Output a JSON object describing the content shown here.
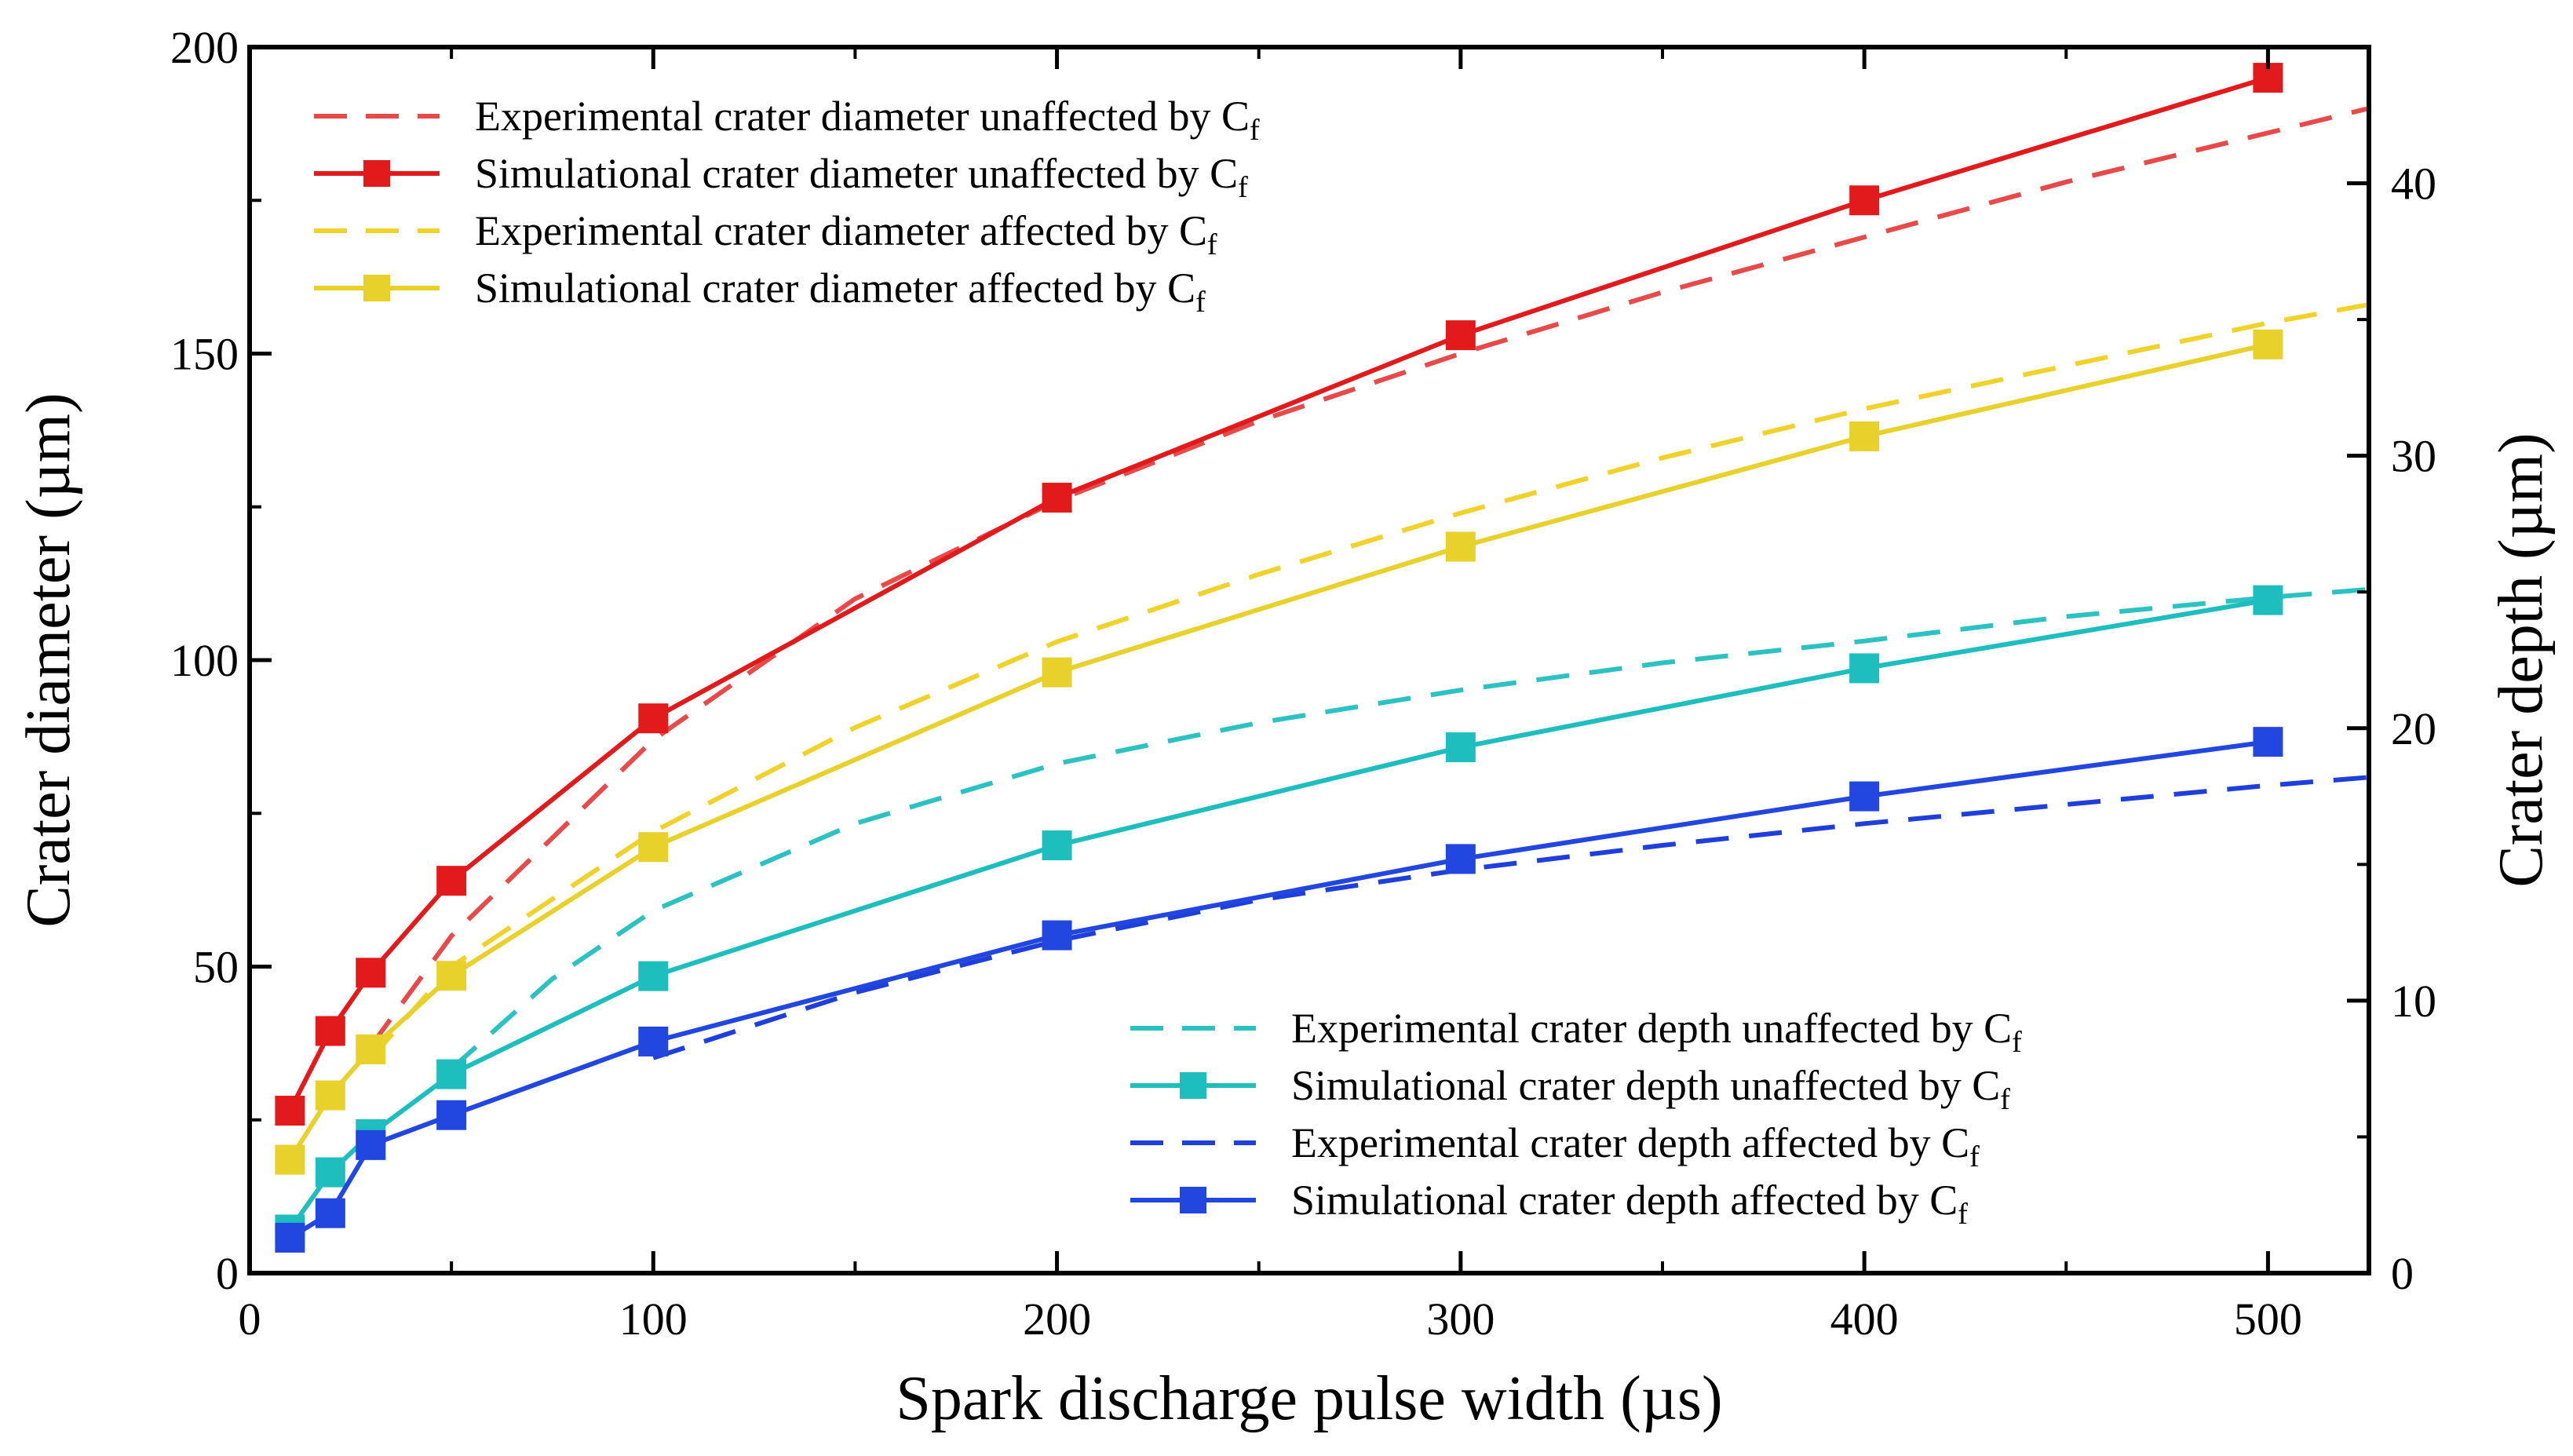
{
  "chart_data": {
    "type": "line",
    "xlabel": "Spark discharge pulse width (µs)",
    "ylabel": "Crater diameter (µm)",
    "y2label": "Crater depth (µm)",
    "xlim": [
      0,
      525
    ],
    "ylim": [
      0,
      200
    ],
    "y2lim": [
      0,
      45
    ],
    "xticks": [
      0,
      100,
      200,
      300,
      400,
      500
    ],
    "yticks": [
      0,
      50,
      100,
      150,
      200
    ],
    "y2ticks": [
      0,
      10,
      20,
      30,
      40
    ],
    "grid": false,
    "legend_position": "top-left and bottom-right",
    "series": [
      {
        "name": "Experimental crater diameter unaffected by C",
        "subscript": "f",
        "style": "dashed",
        "axis": "left",
        "color": "#e84a4a",
        "x": [
          30,
          50,
          100,
          150,
          200,
          250,
          300,
          350,
          400,
          450,
          500,
          525
        ],
        "y": [
          37,
          55,
          87,
          110,
          126,
          139,
          150,
          160,
          169,
          178,
          186,
          190
        ]
      },
      {
        "name": "Simulational crater diameter unaffected by C",
        "subscript": "f",
        "style": "solid-square",
        "axis": "left",
        "color": "#e31a1c",
        "x": [
          10,
          20,
          30,
          50,
          100,
          200,
          300,
          400,
          500
        ],
        "y": [
          26.5,
          39.5,
          49,
          64,
          90.5,
          126.5,
          153,
          175,
          195
        ]
      },
      {
        "name": "Experimental crater diameter affected by C",
        "subscript": "f",
        "style": "dashed",
        "axis": "left",
        "color": "#f0d22a",
        "x": [
          30,
          50,
          100,
          150,
          200,
          250,
          300,
          350,
          400,
          450,
          500,
          525
        ],
        "y": [
          35,
          50,
          72,
          89,
          103,
          114,
          124,
          133,
          141,
          148,
          155,
          158
        ]
      },
      {
        "name": "Simulational crater diameter affected by C",
        "subscript": "f",
        "style": "solid-square",
        "axis": "left",
        "color": "#e8d12a",
        "x": [
          10,
          20,
          30,
          50,
          100,
          200,
          300,
          400,
          500
        ],
        "y": [
          18.5,
          29,
          36.5,
          48.5,
          69.5,
          98,
          118.5,
          136.5,
          151.5
        ]
      },
      {
        "name": "Experimental crater depth unaffected by C",
        "subscript": "f",
        "style": "dashed",
        "axis": "right",
        "color": "#2dc2c2",
        "x": [
          50,
          75,
          100,
          150,
          200,
          250,
          300,
          350,
          400,
          450,
          500,
          525
        ],
        "y": [
          7.5,
          10.8,
          13.3,
          16.5,
          18.7,
          20.2,
          21.4,
          22.4,
          23.2,
          24.1,
          24.8,
          25.1
        ]
      },
      {
        "name": "Simulational crater depth unaffected by C",
        "subscript": "f",
        "style": "solid-square",
        "axis": "right",
        "color": "#1fbebe",
        "x": [
          10,
          20,
          30,
          50,
          100,
          200,
          300,
          400,
          500
        ],
        "y": [
          1.6,
          3.7,
          5.1,
          7.3,
          10.9,
          15.7,
          19.3,
          22.2,
          24.7
        ]
      },
      {
        "name": "Experimental crater depth affected by C",
        "subscript": "f",
        "style": "dashed",
        "axis": "right",
        "color": "#1f3fdc",
        "x": [
          100,
          150,
          200,
          250,
          300,
          350,
          400,
          450,
          500,
          525
        ],
        "y": [
          7.9,
          10.3,
          12.2,
          13.7,
          14.8,
          15.7,
          16.5,
          17.2,
          17.9,
          18.2
        ]
      },
      {
        "name": "Simulational crater depth affected by C",
        "subscript": "f",
        "style": "solid-square",
        "axis": "right",
        "color": "#2246e0",
        "x": [
          10,
          20,
          30,
          50,
          100,
          200,
          300,
          400,
          500
        ],
        "y": [
          1.3,
          2.2,
          4.7,
          5.8,
          8.5,
          12.4,
          15.2,
          17.5,
          19.5
        ]
      }
    ]
  }
}
